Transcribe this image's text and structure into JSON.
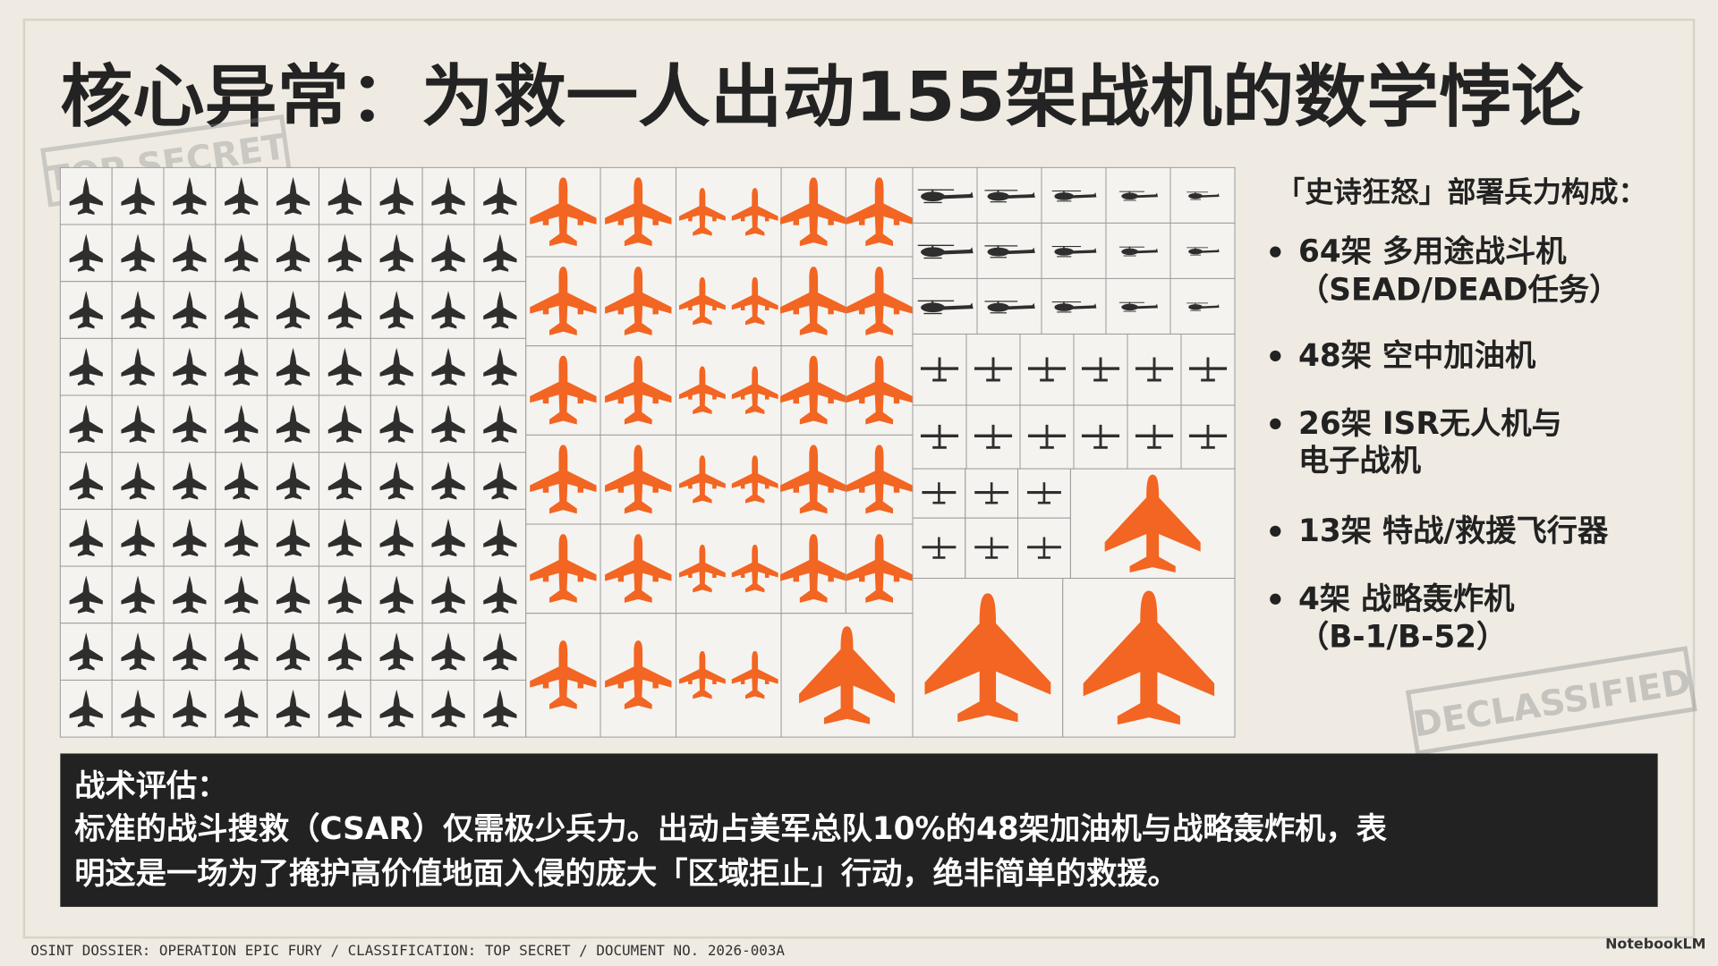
{
  "title": "核心异常：为救一人出动155架战机的数学悖论",
  "stamps": {
    "top_secret": "TOP SECRET",
    "declassified": "DECLASSIFIED"
  },
  "legend": {
    "heading": "「史诗狂怒」部署兵力构成：",
    "items": [
      {
        "lines": [
          "64架 多用途战斗机",
          "（SEAD/DEAD任务）"
        ]
      },
      {
        "lines": [
          "48架 空中加油机"
        ]
      },
      {
        "lines": [
          "26架 ISR无人机与",
          "电子战机"
        ]
      },
      {
        "lines": [
          "13架 特战/救援飞行器"
        ]
      },
      {
        "lines": [
          "4架 战略轰炸机",
          "（B-1/B-52）"
        ]
      }
    ]
  },
  "assessment": {
    "heading": "战术评估：",
    "lines": [
      "标准的战斗搜救（CSAR）仅需极少兵力。出动占美军总队10%的48架加油机与战略轰炸机，表",
      "明这是一场为了掩护高价值地面入侵的庞大「区域拒止」行动，绝非简单的救援。"
    ]
  },
  "footer": "OSINT DOSSIER: OPERATION EPIC FURY / CLASSIFICATION: TOP SECRET / DOCUMENT NO. 2026-003A",
  "brand": "NotebookLM"
}
